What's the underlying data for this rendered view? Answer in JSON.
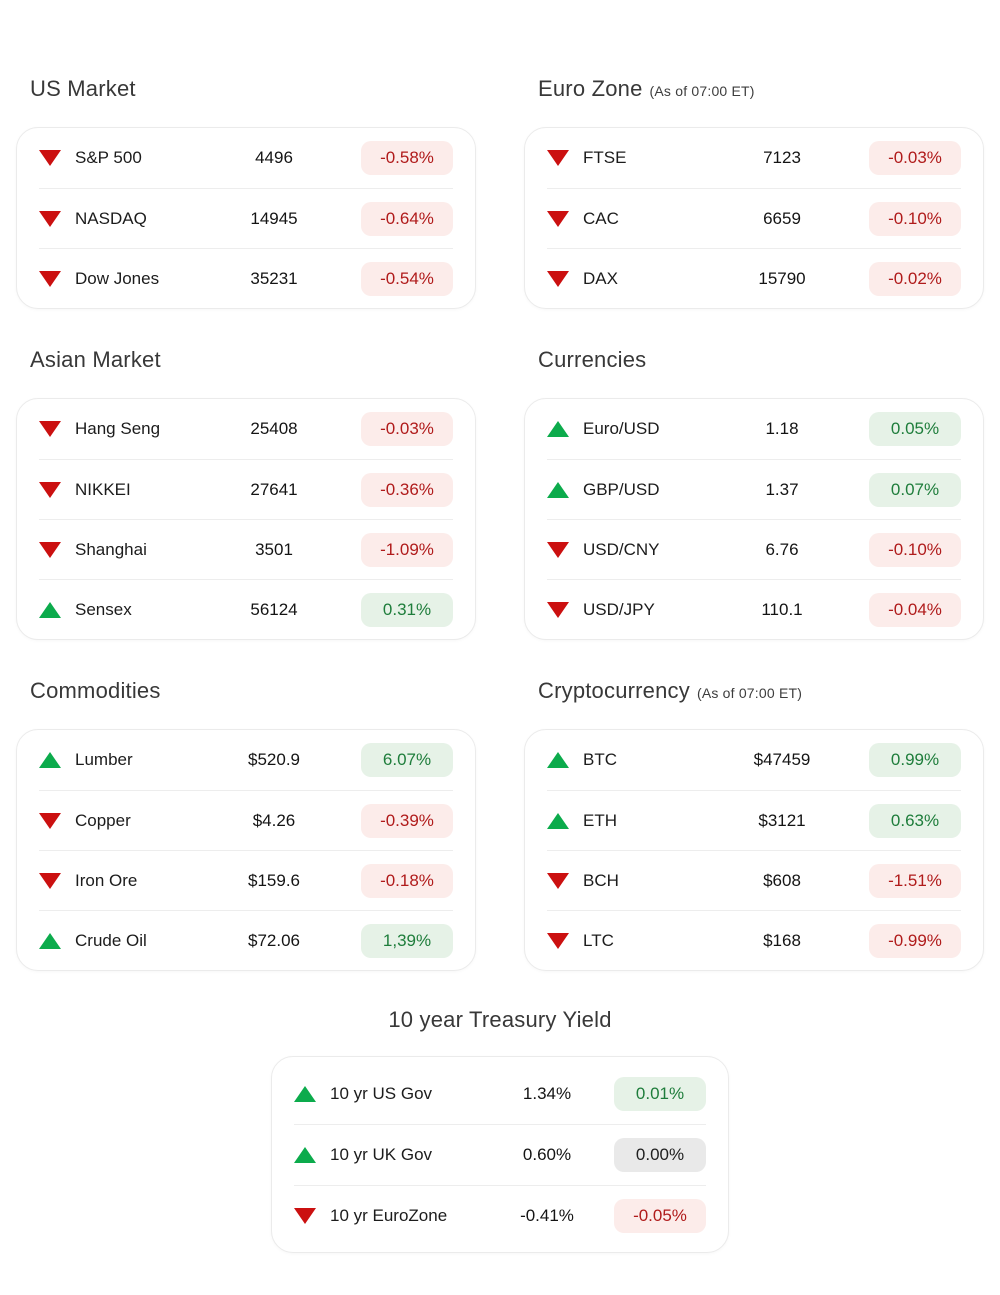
{
  "colors": {
    "up": "#0cab4c",
    "down": "#cb1010",
    "badge_up_bg": "#e6f2e7",
    "badge_up_text": "#1e7d3b",
    "badge_down_bg": "#fcecea",
    "badge_down_text": "#b01b1b",
    "badge_neutral_bg": "#e9e9e9",
    "badge_neutral_text": "#202020"
  },
  "sections": [
    {
      "title": "US Market",
      "subtitle": "",
      "rows": [
        {
          "direction": "down",
          "label": "S&P 500",
          "value": "4496",
          "change": "-0.58%",
          "tone": "down"
        },
        {
          "direction": "down",
          "label": "NASDAQ",
          "value": "14945",
          "change": "-0.64%",
          "tone": "down"
        },
        {
          "direction": "down",
          "label": "Dow Jones",
          "value": "35231",
          "change": "-0.54%",
          "tone": "down"
        }
      ]
    },
    {
      "title": "Euro Zone",
      "subtitle": "(As of 07:00 ET)",
      "rows": [
        {
          "direction": "down",
          "label": "FTSE",
          "value": "7123",
          "change": "-0.03%",
          "tone": "down"
        },
        {
          "direction": "down",
          "label": "CAC",
          "value": "6659",
          "change": "-0.10%",
          "tone": "down"
        },
        {
          "direction": "down",
          "label": "DAX",
          "value": "15790",
          "change": "-0.02%",
          "tone": "down"
        }
      ]
    },
    {
      "title": "Asian Market",
      "subtitle": "",
      "rows": [
        {
          "direction": "down",
          "label": "Hang Seng",
          "value": "25408",
          "change": "-0.03%",
          "tone": "down"
        },
        {
          "direction": "down",
          "label": "NIKKEI",
          "value": "27641",
          "change": "-0.36%",
          "tone": "down"
        },
        {
          "direction": "down",
          "label": "Shanghai",
          "value": "3501",
          "change": "-1.09%",
          "tone": "down"
        },
        {
          "direction": "up",
          "label": "Sensex",
          "value": "56124",
          "change": "0.31%",
          "tone": "up"
        }
      ]
    },
    {
      "title": "Currencies",
      "subtitle": "",
      "rows": [
        {
          "direction": "up",
          "label": "Euro/USD",
          "value": "1.18",
          "change": "0.05%",
          "tone": "up"
        },
        {
          "direction": "up",
          "label": "GBP/USD",
          "value": "1.37",
          "change": "0.07%",
          "tone": "up"
        },
        {
          "direction": "down",
          "label": "USD/CNY",
          "value": "6.76",
          "change": "-0.10%",
          "tone": "down"
        },
        {
          "direction": "down",
          "label": "USD/JPY",
          "value": "110.1",
          "change": "-0.04%",
          "tone": "down"
        }
      ]
    },
    {
      "title": "Commodities",
      "subtitle": "",
      "rows": [
        {
          "direction": "up",
          "label": "Lumber",
          "value": "$520.9",
          "change": "6.07%",
          "tone": "up"
        },
        {
          "direction": "down",
          "label": "Copper",
          "value": "$4.26",
          "change": "-0.39%",
          "tone": "down"
        },
        {
          "direction": "down",
          "label": "Iron Ore",
          "value": "$159.6",
          "change": "-0.18%",
          "tone": "down"
        },
        {
          "direction": "up",
          "label": "Crude Oil",
          "value": "$72.06",
          "change": "1,39%",
          "tone": "up"
        }
      ]
    },
    {
      "title": "Cryptocurrency",
      "subtitle": "(As of 07:00 ET)",
      "rows": [
        {
          "direction": "up",
          "label": "BTC",
          "value": "$47459",
          "change": "0.99%",
          "tone": "up"
        },
        {
          "direction": "up",
          "label": "ETH",
          "value": "$3121",
          "change": "0.63%",
          "tone": "up"
        },
        {
          "direction": "down",
          "label": "BCH",
          "value": "$608",
          "change": "-1.51%",
          "tone": "down"
        },
        {
          "direction": "down",
          "label": "LTC",
          "value": "$168",
          "change": "-0.99%",
          "tone": "down"
        }
      ]
    }
  ],
  "treasury": {
    "title": "10 year Treasury Yield",
    "rows": [
      {
        "direction": "up",
        "label": "10 yr US Gov",
        "value": "1.34%",
        "change": "0.01%",
        "tone": "up"
      },
      {
        "direction": "up",
        "label": "10 yr UK Gov",
        "value": "0.60%",
        "change": "0.00%",
        "tone": "neutral"
      },
      {
        "direction": "down",
        "label": "10 yr EuroZone",
        "value": "-0.41%",
        "change": "-0.05%",
        "tone": "down"
      }
    ]
  }
}
